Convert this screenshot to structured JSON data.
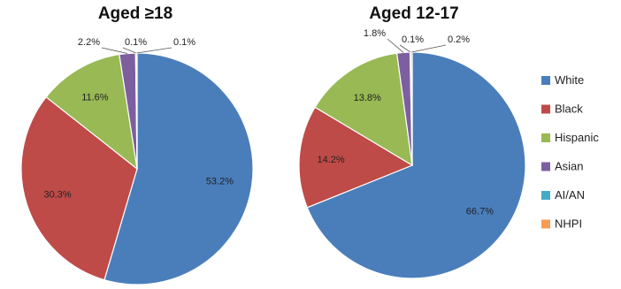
{
  "chart_data": [
    {
      "type": "pie",
      "title": "Aged ≥18",
      "legend": "right",
      "slices": [
        {
          "name": "White",
          "value": 53.2,
          "label": "53.2%"
        },
        {
          "name": "Black",
          "value": 30.3,
          "label": "30.3%"
        },
        {
          "name": "Hispanic",
          "value": 11.6,
          "label": "11.6%"
        },
        {
          "name": "Asian",
          "value": 2.2,
          "label": "2.2%"
        },
        {
          "name": "AI/AN",
          "value": 0.1,
          "label": "0.1%"
        },
        {
          "name": "NHPI",
          "value": 0.1,
          "label": "0.1%"
        }
      ]
    },
    {
      "type": "pie",
      "title": "Aged 12-17",
      "legend": "right",
      "slices": [
        {
          "name": "White",
          "value": 66.7,
          "label": "66.7%"
        },
        {
          "name": "Black",
          "value": 14.2,
          "label": "14.2%"
        },
        {
          "name": "Hispanic",
          "value": 13.8,
          "label": "13.8%"
        },
        {
          "name": "Asian",
          "value": 1.8,
          "label": "1.8%"
        },
        {
          "name": "AI/AN",
          "value": 0.1,
          "label": "0.1%"
        },
        {
          "name": "NHPI",
          "value": 0.2,
          "label": "0.2%"
        }
      ]
    }
  ],
  "legend": [
    {
      "name": "White",
      "color": "#4a7ebb"
    },
    {
      "name": "Black",
      "color": "#be4b48"
    },
    {
      "name": "Hispanic",
      "color": "#98b954"
    },
    {
      "name": "Asian",
      "color": "#7d5fa0"
    },
    {
      "name": "AI/AN",
      "color": "#46aac4"
    },
    {
      "name": "NHPI",
      "color": "#f59d56"
    }
  ]
}
